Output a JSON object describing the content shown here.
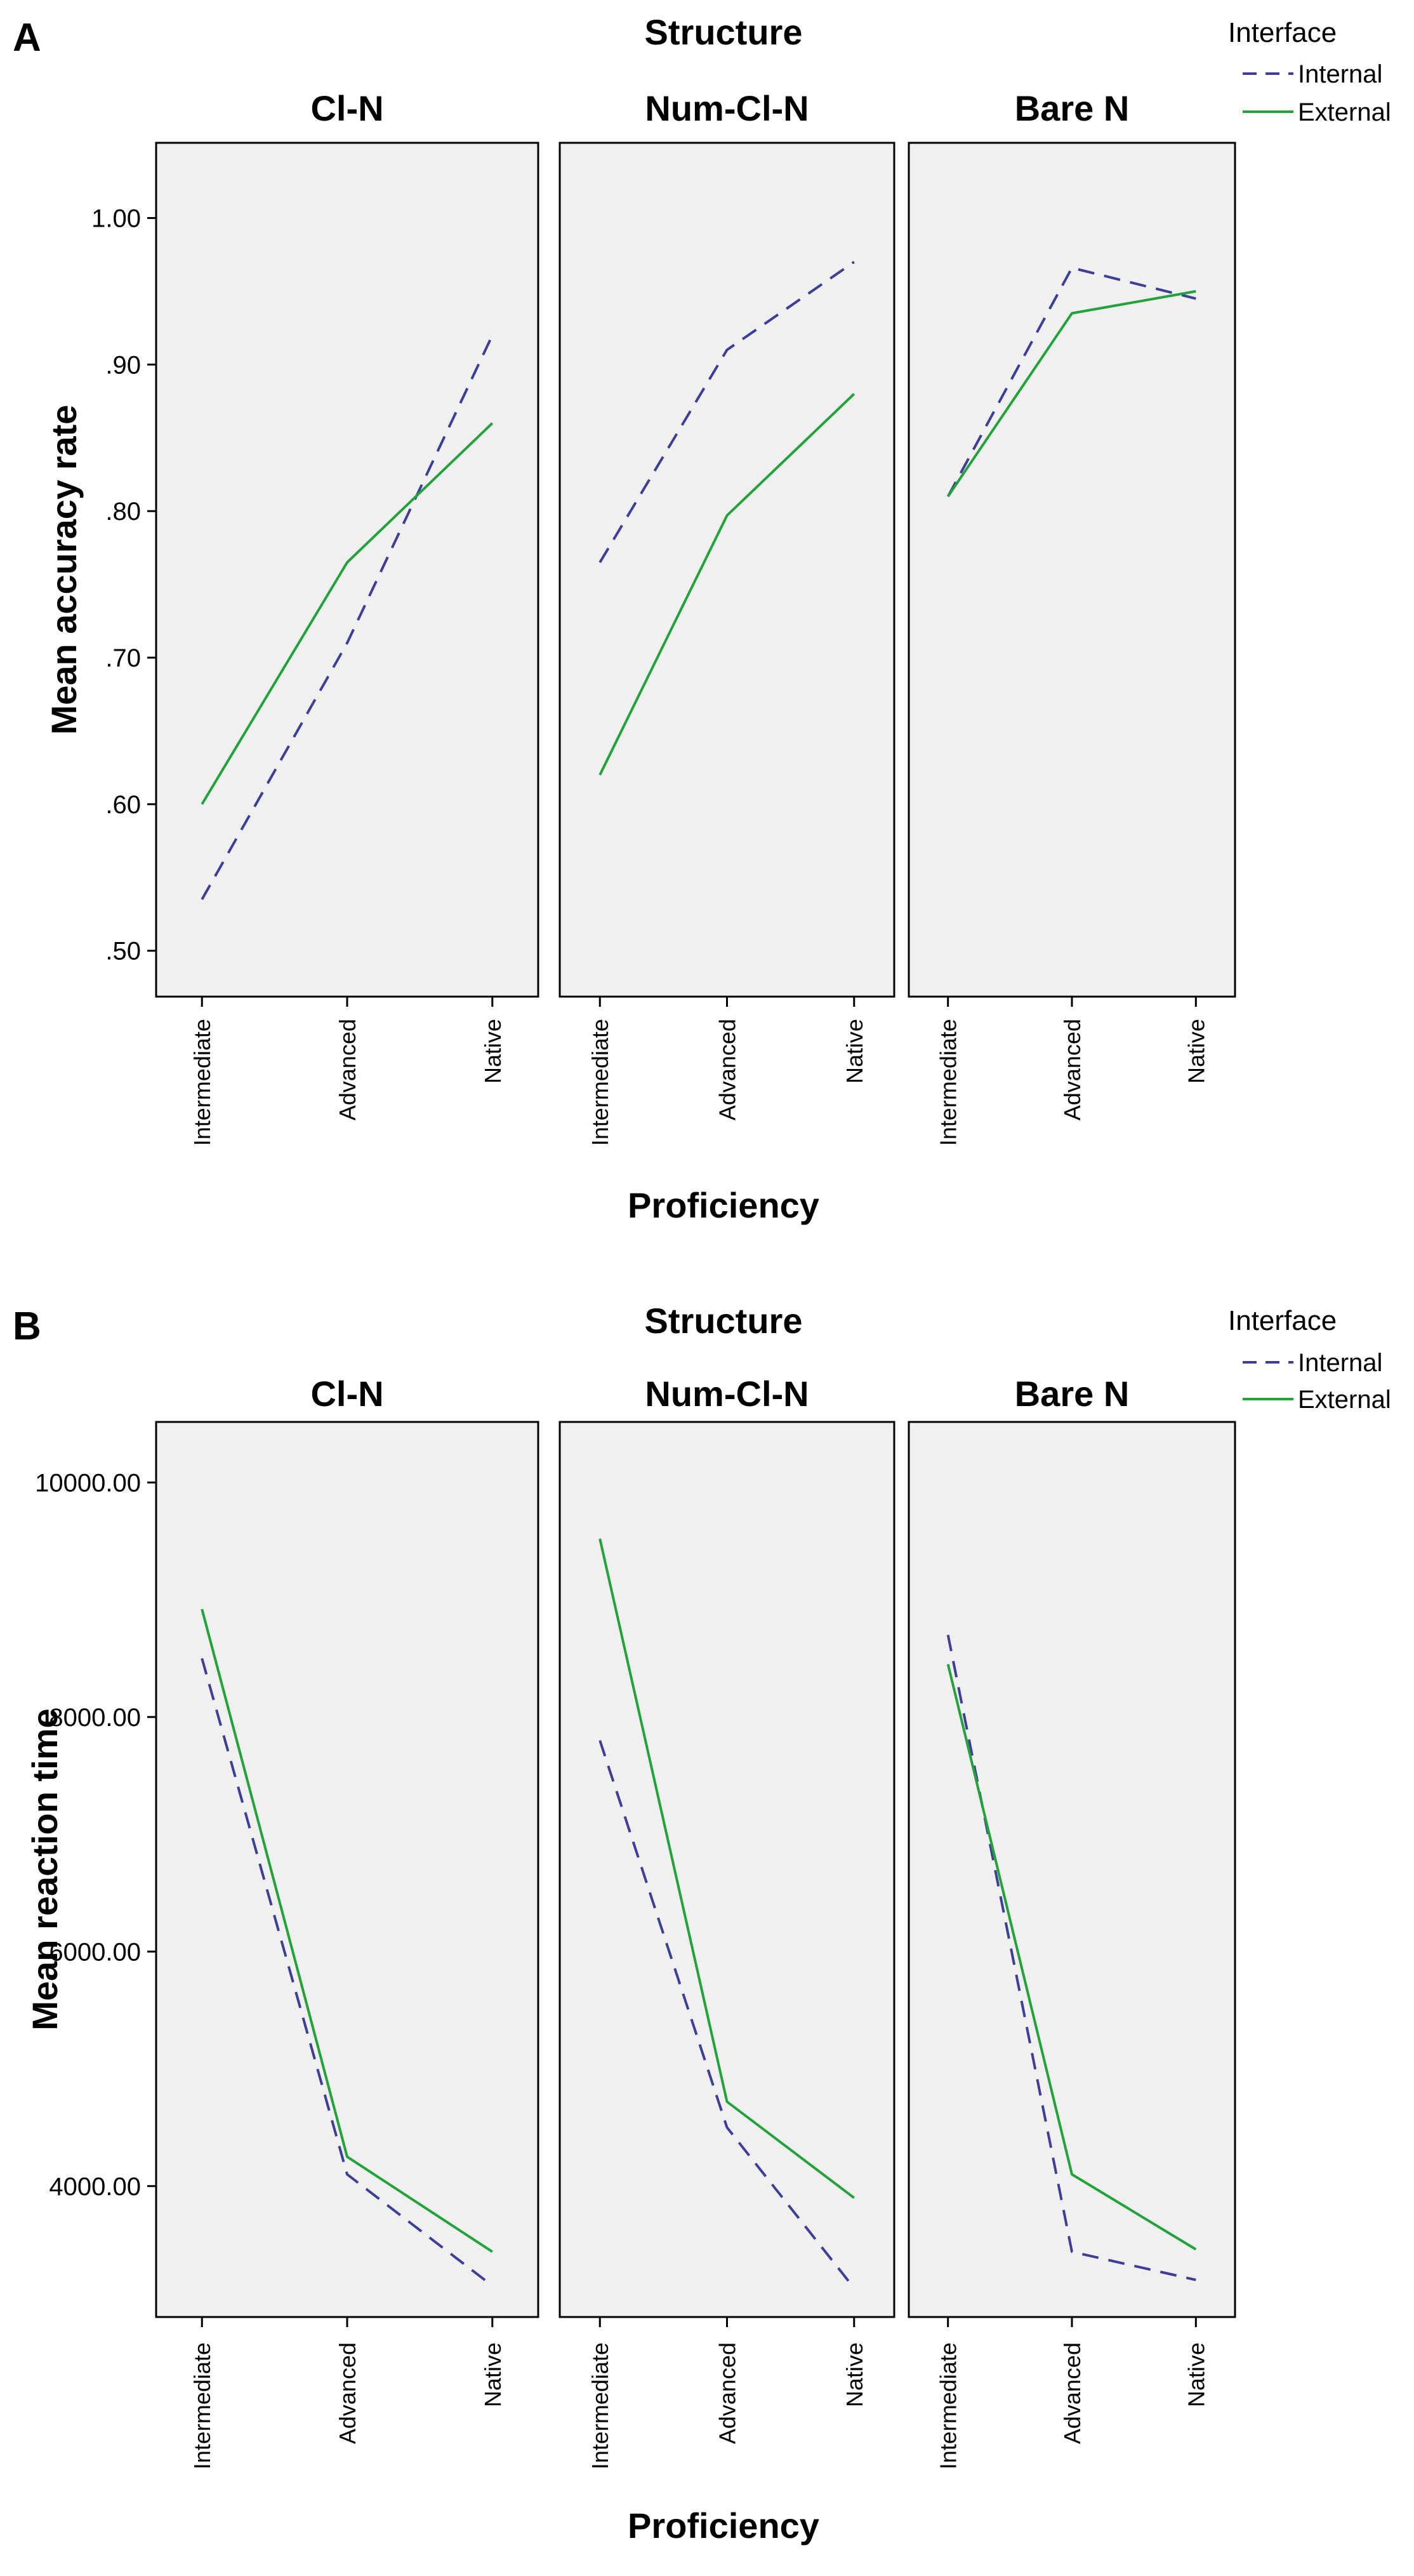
{
  "chart_data": [
    {
      "type": "line",
      "panel_letter": "A",
      "facet_title": "Structure",
      "facets": [
        "Cl-N",
        "Num-Cl-N",
        "Bare N"
      ],
      "categories": [
        "Intermediate",
        "Advanced",
        "Native"
      ],
      "xlabel": "Proficiency",
      "ylabel": "Mean accuracy rate",
      "ylim": [
        0.47,
        1.05
      ],
      "yticks": [
        0.5,
        0.6,
        0.7,
        0.8,
        0.9,
        1.0
      ],
      "ytick_labels": [
        ".50",
        ".60",
        ".70",
        ".80",
        ".90",
        "1.00"
      ],
      "legend": {
        "title": "Interface",
        "items": [
          {
            "name": "Internal",
            "color": "#3b3f9a",
            "style": "dashed"
          },
          {
            "name": "External",
            "color": "#22a33a",
            "style": "solid"
          }
        ]
      },
      "series": [
        {
          "name": "Internal",
          "facet": "Cl-N",
          "values": [
            0.535,
            0.71,
            0.92
          ]
        },
        {
          "name": "External",
          "facet": "Cl-N",
          "values": [
            0.6,
            0.765,
            0.86
          ]
        },
        {
          "name": "Internal",
          "facet": "Num-Cl-N",
          "values": [
            0.765,
            0.91,
            0.97
          ]
        },
        {
          "name": "External",
          "facet": "Num-Cl-N",
          "values": [
            0.62,
            0.797,
            0.88
          ]
        },
        {
          "name": "Internal",
          "facet": "Bare N",
          "values": [
            0.81,
            0.966,
            0.945
          ]
        },
        {
          "name": "External",
          "facet": "Bare N",
          "values": [
            0.81,
            0.935,
            0.95
          ]
        }
      ]
    },
    {
      "type": "line",
      "panel_letter": "B",
      "facet_title": "Structure",
      "facets": [
        "Cl-N",
        "Num-Cl-N",
        "Bare N"
      ],
      "categories": [
        "Intermediate",
        "Advanced",
        "Native"
      ],
      "xlabel": "Proficiency",
      "ylabel": "Mean reaction time",
      "ylim": [
        2900,
        10500
      ],
      "yticks": [
        4000,
        6000,
        8000,
        10000
      ],
      "ytick_labels": [
        "4000.00",
        "6000.00",
        "8000.00",
        "10000.00"
      ],
      "legend": {
        "title": "Interface",
        "items": [
          {
            "name": "Internal",
            "color": "#3b3f9a",
            "style": "dashed"
          },
          {
            "name": "External",
            "color": "#22a33a",
            "style": "solid"
          }
        ]
      },
      "series": [
        {
          "name": "Internal",
          "facet": "Cl-N",
          "values": [
            8500,
            4100,
            3150
          ]
        },
        {
          "name": "External",
          "facet": "Cl-N",
          "values": [
            8920,
            4250,
            3440
          ]
        },
        {
          "name": "Internal",
          "facet": "Num-Cl-N",
          "values": [
            7800,
            4500,
            3130
          ]
        },
        {
          "name": "External",
          "facet": "Num-Cl-N",
          "values": [
            9520,
            4720,
            3900
          ]
        },
        {
          "name": "Internal",
          "facet": "Bare N",
          "values": [
            8700,
            3440,
            3200
          ]
        },
        {
          "name": "External",
          "facet": "Bare N",
          "values": [
            8450,
            4100,
            3460
          ]
        }
      ]
    }
  ]
}
